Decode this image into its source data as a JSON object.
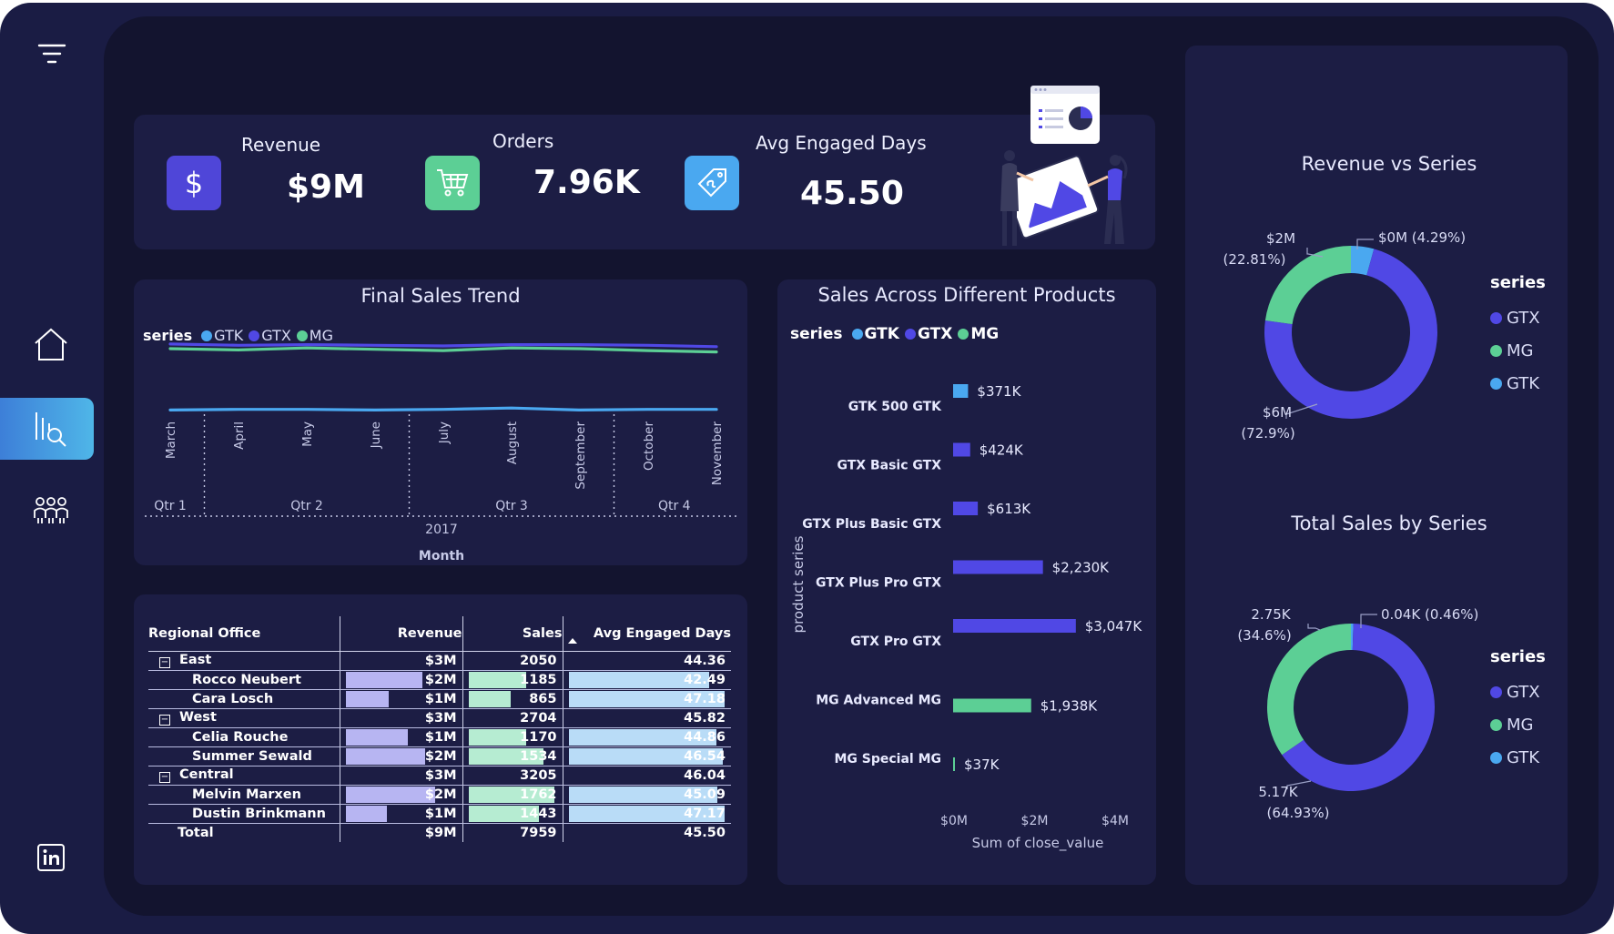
{
  "colors": {
    "gtk": "#4aa8f0",
    "gtx": "#5048e5",
    "mg": "#5ccf95",
    "revenue_bar": "#b7b5f2",
    "sales_bar": "#b6ecd2",
    "days_bar": "#b9dcf7",
    "revenue_icon_bg": "#4f46d8",
    "orders_icon_bg": "#5ccf95",
    "days_icon_bg": "#4aa8f0"
  },
  "sidebar": {
    "items": [
      {
        "icon": "filter-icon"
      },
      {
        "icon": "home-icon"
      },
      {
        "icon": "analytics-search-icon",
        "active": true
      },
      {
        "icon": "people-group-icon"
      },
      {
        "icon": "linkedin-icon"
      }
    ]
  },
  "kpis": [
    {
      "label": "Revenue",
      "value": "$9M",
      "icon": "dollar-icon"
    },
    {
      "label": "Orders",
      "value": "7.96K",
      "icon": "cart-icon"
    },
    {
      "label": "Avg Engaged Days",
      "value": "45.50",
      "icon": "tag-icon"
    }
  ],
  "chart_data": [
    {
      "type": "line",
      "title": "Final Sales Trend",
      "legend_title": "series",
      "legend_position": "top-left",
      "x": [
        "March",
        "April",
        "May",
        "June",
        "July",
        "August",
        "September",
        "October",
        "November"
      ],
      "quarters": [
        "Qtr 1",
        "Qtr 2",
        "Qtr 3",
        "Qtr 4"
      ],
      "year": "2017",
      "xlabel": "Month",
      "series": [
        {
          "name": "GTK",
          "values": [
            0.05,
            0.06,
            0.06,
            0.05,
            0.06,
            0.08,
            0.05,
            0.06,
            0.06
          ]
        },
        {
          "name": "GTX",
          "values": [
            1.05,
            1.03,
            1.04,
            1.03,
            1.02,
            1.04,
            1.04,
            1.03,
            1.01
          ]
        },
        {
          "name": "MG",
          "values": [
            0.98,
            0.96,
            0.99,
            0.97,
            0.95,
            0.99,
            0.98,
            0.95,
            0.93
          ]
        }
      ],
      "ylim": [
        0,
        1.2
      ]
    },
    {
      "type": "bar",
      "orientation": "horizontal",
      "title": "Sales Across Different Products",
      "legend_title": "series",
      "legend_position": "top-left",
      "ylabel": "product series",
      "xlabel": "Sum of close_value",
      "categories": [
        "GTK 500 GTK",
        "GTX Basic GTX",
        "GTX Plus Basic GTX",
        "GTX Plus Pro GTX",
        "GTX Pro GTX",
        "MG Advanced MG",
        "MG Special MG"
      ],
      "series_of_category": [
        "GTK",
        "GTX",
        "GTX",
        "GTX",
        "GTX",
        "MG",
        "MG"
      ],
      "values": [
        371,
        424,
        613,
        2230,
        3047,
        1938,
        37
      ],
      "value_labels": [
        "$371K",
        "$424K",
        "$613K",
        "$2,230K",
        "$3,047K",
        "$1,938K",
        "$37K"
      ],
      "xticks": [
        "$0M",
        "$2M",
        "$4M"
      ],
      "xlim": [
        0,
        4000
      ]
    },
    {
      "type": "pie",
      "donut": true,
      "title": "Revenue vs Series",
      "legend_title": "series",
      "legend_position": "right",
      "slices": [
        {
          "name": "GTX",
          "value": 72.9,
          "label": "$6M",
          "pct": "(72.9%)"
        },
        {
          "name": "MG",
          "value": 22.81,
          "label": "$2M",
          "pct": "(22.81%)"
        },
        {
          "name": "GTK",
          "value": 4.29,
          "label": "$0M (4.29%)",
          "pct": ""
        }
      ]
    },
    {
      "type": "pie",
      "donut": true,
      "title": "Total Sales by Series",
      "legend_title": "series",
      "legend_position": "right",
      "slices": [
        {
          "name": "GTX",
          "value": 64.93,
          "label": "5.17K",
          "pct": "(64.93%)"
        },
        {
          "name": "MG",
          "value": 34.6,
          "label": "2.75K",
          "pct": "(34.6%)"
        },
        {
          "name": "GTK",
          "value": 0.46,
          "label": "0.04K (0.46%)",
          "pct": ""
        }
      ]
    }
  ],
  "table": {
    "headers": [
      "Regional Office",
      "Revenue",
      "Sales",
      "Avg Engaged Days"
    ],
    "max": {
      "revenue": 2.3,
      "sales": 1800,
      "days": 47.5
    },
    "rows": [
      {
        "type": "group",
        "name": "East",
        "revenue": "$3M",
        "sales": "2050",
        "days": "44.36"
      },
      {
        "type": "child",
        "name": "Rocco Neubert",
        "revenue": "$2M",
        "sales": "1185",
        "days": "42.49",
        "rv": 1.6,
        "sv": 1185,
        "dv": 42.49
      },
      {
        "type": "child",
        "name": "Cara Losch",
        "revenue": "$1M",
        "sales": "865",
        "days": "47.18",
        "rv": 0.9,
        "sv": 865,
        "dv": 47.18
      },
      {
        "type": "group",
        "name": "West",
        "revenue": "$3M",
        "sales": "2704",
        "days": "45.82"
      },
      {
        "type": "child",
        "name": "Celia Rouche",
        "revenue": "$1M",
        "sales": "1170",
        "days": "44.86",
        "rv": 1.3,
        "sv": 1170,
        "dv": 44.86
      },
      {
        "type": "child",
        "name": "Summer Sewald",
        "revenue": "$2M",
        "sales": "1534",
        "days": "46.54",
        "rv": 1.65,
        "sv": 1534,
        "dv": 46.54
      },
      {
        "type": "group",
        "name": "Central",
        "revenue": "$3M",
        "sales": "3205",
        "days": "46.04"
      },
      {
        "type": "child",
        "name": "Melvin Marxen",
        "revenue": "$2M",
        "sales": "1762",
        "days": "45.09",
        "rv": 1.85,
        "sv": 1762,
        "dv": 45.09
      },
      {
        "type": "child",
        "name": "Dustin Brinkmann",
        "revenue": "$1M",
        "sales": "1443",
        "days": "47.17",
        "rv": 0.85,
        "sv": 1443,
        "dv": 47.17
      },
      {
        "type": "total",
        "name": "Total",
        "revenue": "$9M",
        "sales": "7959",
        "days": "45.50"
      }
    ]
  }
}
